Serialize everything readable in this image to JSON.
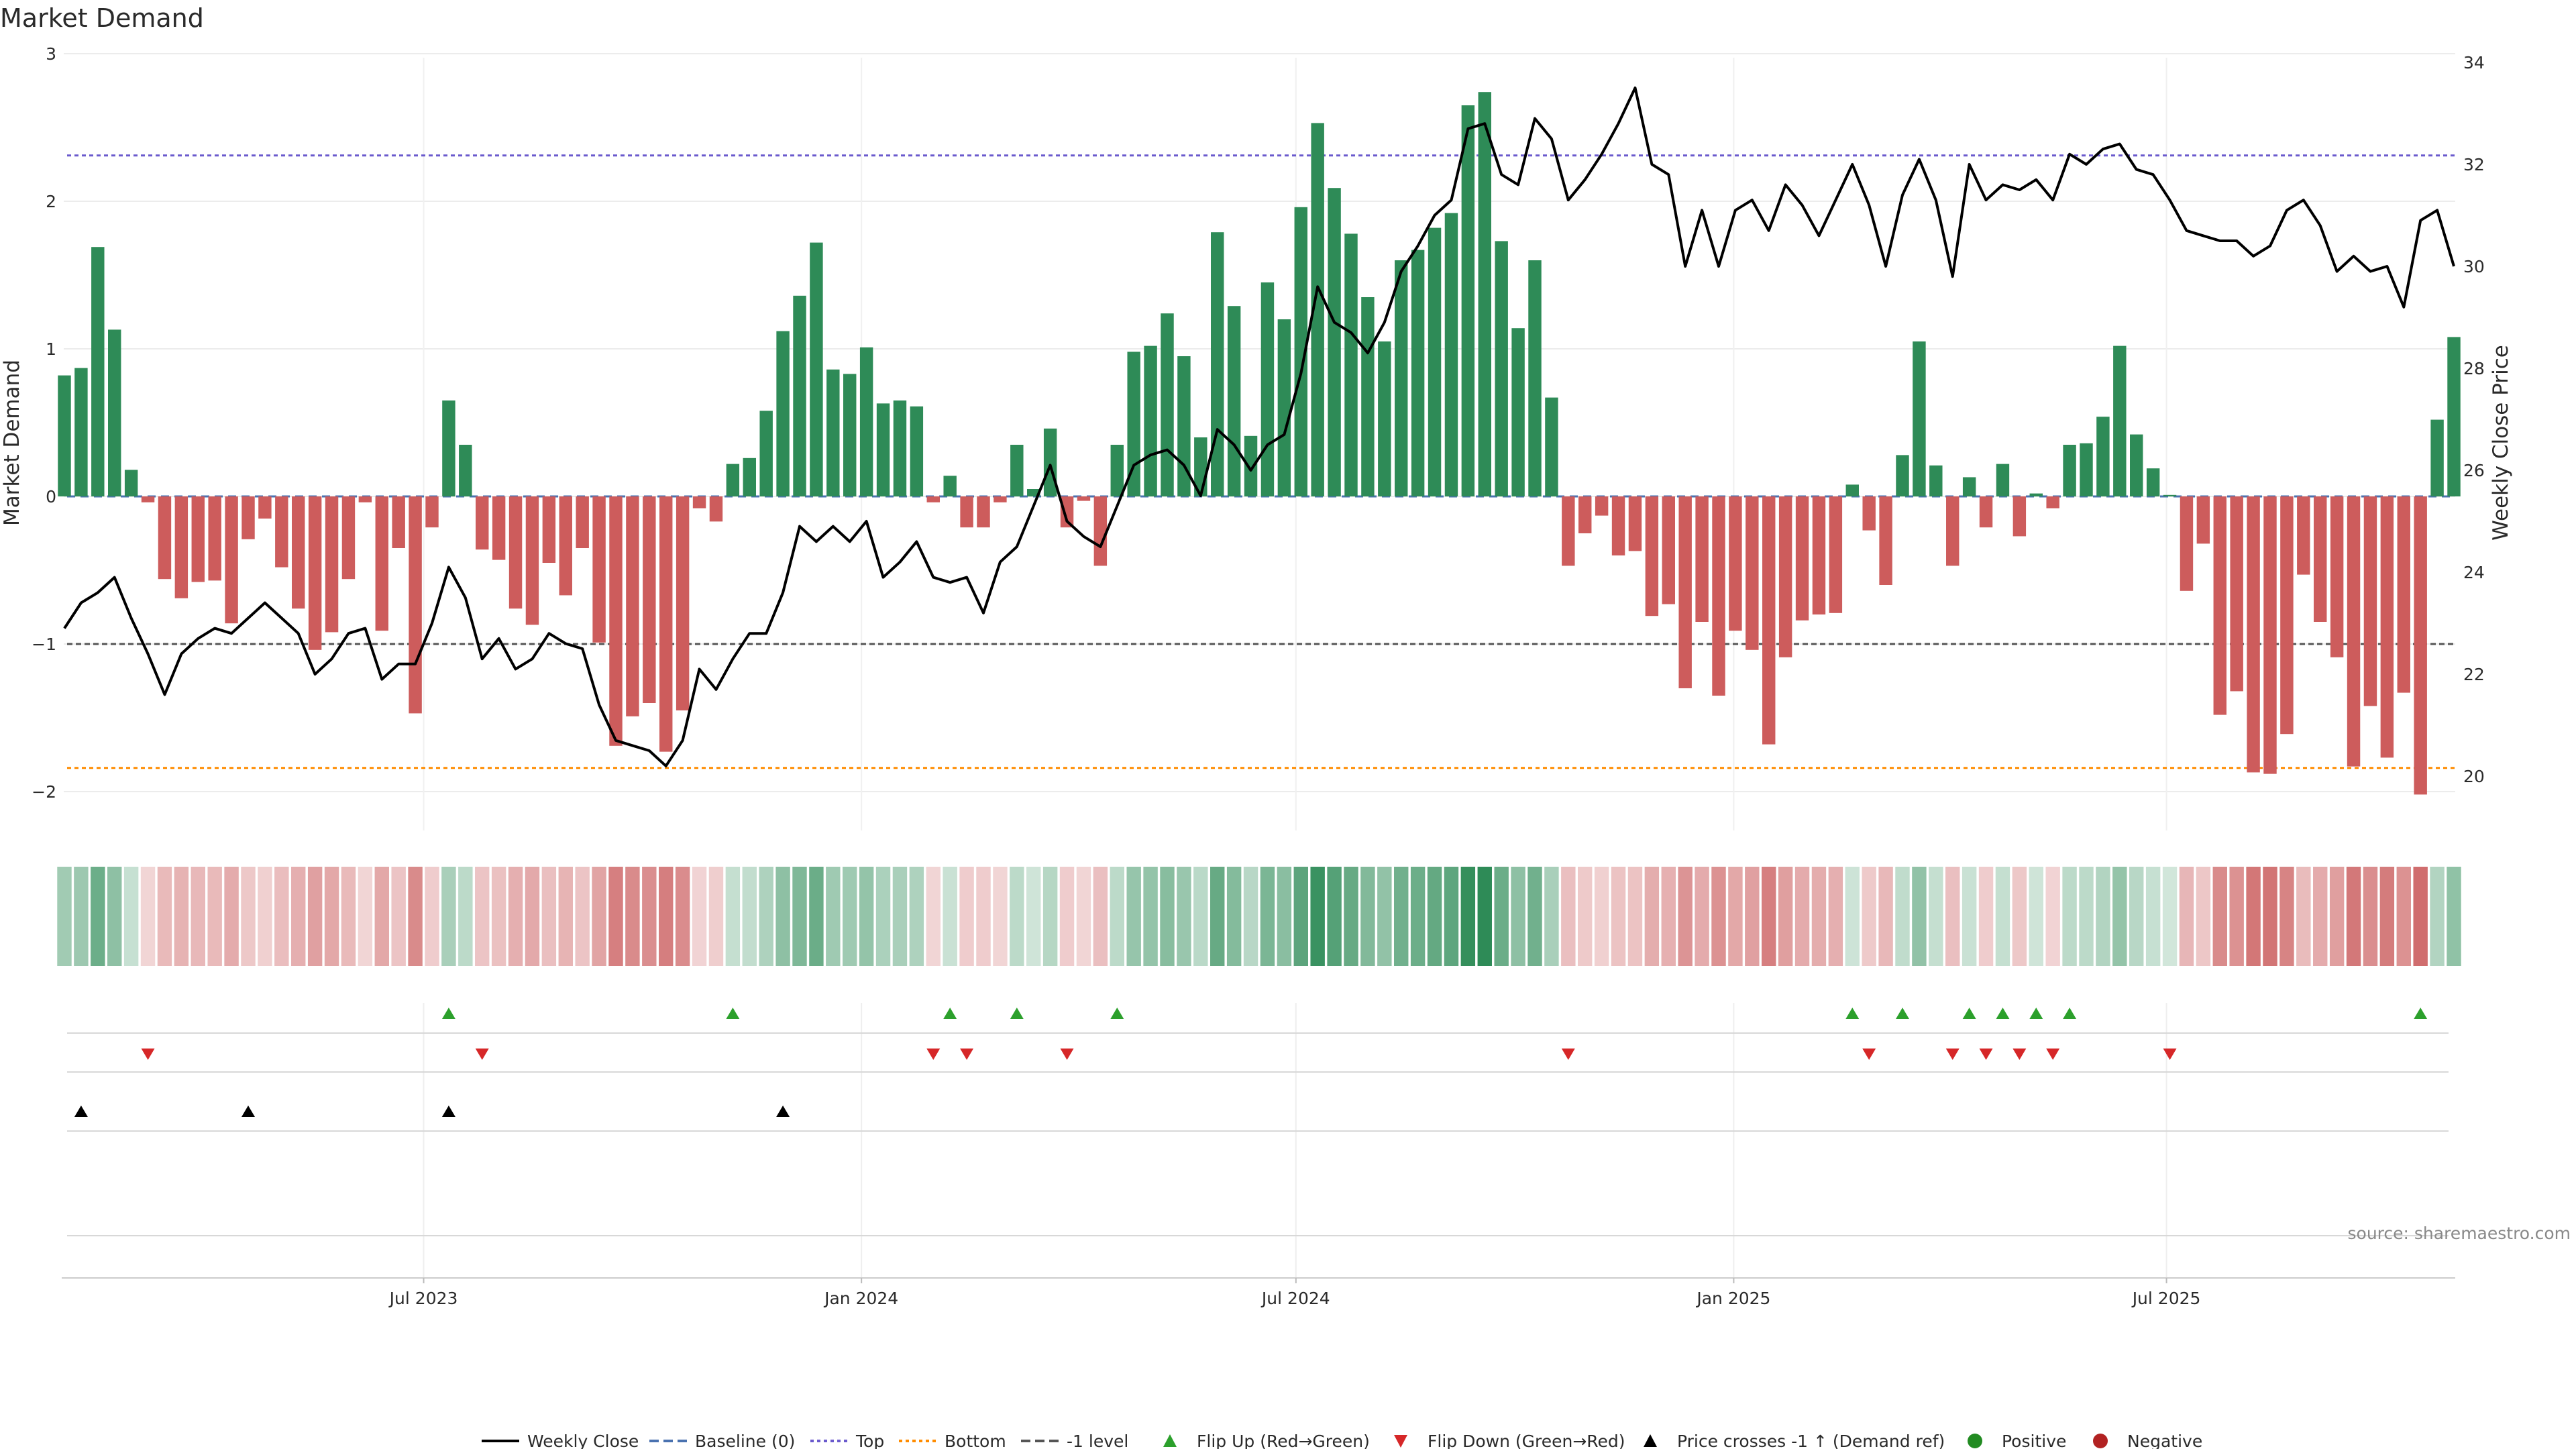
{
  "chart_data": {
    "type": "bar",
    "title": "Market Demand",
    "source": "source: sharemaestro.com",
    "ylabel_left": "Market Demand",
    "ylabel_right": "Weekly Close Price",
    "ylim_left": [
      -2.3,
      3
    ],
    "ylim_right": [
      19,
      34.2
    ],
    "yticks_left": [
      3,
      2,
      1,
      0,
      -1,
      -2
    ],
    "yticks_right": [
      34,
      32,
      30,
      28,
      26,
      24,
      22,
      20
    ],
    "reference_lines": {
      "top": 2.31,
      "bottom": -1.84,
      "minus_one": -1.0,
      "baseline": 0
    },
    "x_start_week": "2023-03-13",
    "x_ticks": [
      {
        "label": "Jul 2023",
        "week": 21.5
      },
      {
        "label": "Jan 2024",
        "week": 47.7
      },
      {
        "label": "Jul 2024",
        "week": 73.7
      },
      {
        "label": "Jan 2025",
        "week": 99.9
      },
      {
        "label": "Jul 2025",
        "week": 125.8
      }
    ],
    "demand_values": [
      0.82,
      0.87,
      1.69,
      1.13,
      0.18,
      -0.04,
      -0.56,
      -0.69,
      -0.58,
      -0.57,
      -0.86,
      -0.29,
      -0.15,
      -0.48,
      -0.76,
      -1.04,
      -0.92,
      -0.56,
      -0.04,
      -0.91,
      -0.35,
      -1.47,
      -0.21,
      0.65,
      0.35,
      -0.36,
      -0.43,
      -0.76,
      -0.87,
      -0.45,
      -0.67,
      -0.35,
      -0.99,
      -1.69,
      -1.49,
      -1.4,
      -1.73,
      -1.45,
      -0.08,
      -0.17,
      0.22,
      0.26,
      0.58,
      1.12,
      1.36,
      1.72,
      0.86,
      0.83,
      1.01,
      0.63,
      0.65,
      0.61,
      -0.04,
      0.14,
      -0.21,
      -0.21,
      -0.04,
      0.35,
      0.05,
      0.46,
      -0.21,
      -0.03,
      -0.47,
      0.35,
      0.98,
      1.02,
      1.24,
      0.95,
      0.4,
      1.79,
      1.29,
      0.41,
      1.45,
      1.2,
      1.96,
      2.53,
      2.09,
      1.78,
      1.35,
      1.05,
      1.6,
      1.67,
      1.82,
      1.92,
      2.65,
      2.74,
      1.73,
      1.14,
      1.6,
      0.67,
      -0.47,
      -0.25,
      -0.13,
      -0.4,
      -0.37,
      -0.81,
      -0.73,
      -1.3,
      -0.85,
      -1.35,
      -0.91,
      -1.04,
      -1.68,
      -1.09,
      -0.84,
      -0.8,
      -0.79,
      0.08,
      -0.23,
      -0.6,
      0.28,
      1.05,
      0.21,
      -0.47,
      0.13,
      -0.21,
      0.22,
      -0.27,
      0.02,
      -0.08,
      0.35,
      0.36,
      0.54,
      1.02,
      0.42,
      0.19,
      0.01,
      -0.64,
      -0.32,
      -1.48,
      -1.32,
      -1.87,
      -1.88,
      -1.61,
      -0.53,
      -0.85,
      -1.09,
      -1.83,
      -1.42,
      -1.77,
      -1.33,
      -2.02,
      0.52,
      1.08
    ],
    "price": {
      "weeks": [
        0,
        1,
        2,
        3,
        4,
        5,
        6,
        7,
        8,
        9,
        10,
        11,
        12,
        13,
        14,
        15,
        16,
        17,
        18,
        19,
        20,
        21,
        22,
        23,
        24,
        25,
        26,
        27,
        28,
        29,
        30,
        31,
        32,
        33,
        34,
        35,
        36,
        37,
        38,
        39,
        40,
        41,
        42,
        43,
        44,
        45,
        46,
        47,
        48,
        49,
        50,
        51,
        52,
        53,
        54,
        55,
        56,
        57,
        58,
        59,
        60,
        61,
        62,
        63,
        64,
        65,
        66,
        67,
        68,
        69,
        70,
        71,
        72,
        73,
        74,
        75,
        76,
        77,
        78,
        79,
        80,
        81,
        82,
        83,
        84,
        85,
        86,
        87,
        88,
        89,
        90,
        91,
        92,
        93,
        94,
        95,
        96,
        97,
        98,
        99,
        100,
        101,
        102,
        103,
        104,
        105,
        106,
        107,
        108,
        109,
        110,
        111,
        112,
        113,
        114,
        115,
        116,
        117,
        118,
        119,
        120,
        121,
        122,
        123,
        124,
        125,
        126,
        127,
        128,
        129,
        130,
        131,
        132,
        133,
        134,
        135,
        136,
        137,
        138,
        139,
        140,
        141,
        142,
        143
      ],
      "values": [
        22.9,
        23.4,
        23.6,
        23.9,
        23.1,
        22.4,
        21.6,
        22.4,
        22.7,
        22.9,
        22.8,
        23.1,
        23.4,
        23.1,
        22.8,
        22.0,
        22.3,
        22.8,
        22.9,
        21.9,
        22.2,
        22.2,
        23.0,
        24.1,
        23.5,
        22.3,
        22.7,
        22.1,
        22.3,
        22.8,
        22.6,
        22.5,
        21.4,
        20.7,
        20.6,
        20.5,
        20.2,
        20.7,
        22.1,
        21.7,
        22.3,
        22.8,
        22.8,
        23.6,
        24.9,
        24.6,
        24.9,
        24.6,
        25.0,
        23.9,
        24.2,
        24.6,
        23.9,
        23.8,
        23.9,
        23.2,
        24.2,
        24.5,
        25.3,
        26.1,
        25.0,
        24.7,
        24.5,
        25.3,
        26.1,
        26.3,
        26.4,
        26.1,
        25.5,
        26.8,
        26.5,
        26.0,
        26.5,
        26.7,
        27.9,
        29.6,
        28.9,
        28.7,
        28.3,
        28.9,
        29.9,
        30.4,
        31.0,
        31.3,
        32.7,
        32.8,
        31.8,
        31.6,
        32.9,
        32.5,
        31.3,
        31.7,
        32.2,
        32.8,
        33.5,
        32.0,
        31.8,
        30.0,
        31.1,
        30.0,
        31.1,
        31.3,
        30.7,
        31.6,
        31.2,
        30.6,
        31.3,
        32.0,
        31.2,
        30.0,
        31.4,
        32.1,
        31.3,
        29.8,
        32.0,
        31.3,
        31.6,
        31.5,
        31.7,
        31.3,
        32.2,
        32.0,
        32.3,
        32.4,
        31.9,
        31.8,
        31.3,
        30.7,
        30.6,
        30.5,
        30.5,
        30.2,
        30.4,
        31.1,
        31.3,
        30.8,
        29.9,
        30.2,
        29.9,
        30.0,
        29.2,
        30.9,
        31.1,
        30.0
      ]
    },
    "heat_strip": {
      "type": "heatmap",
      "source_series": "demand_values",
      "color_positive": "#2e8b57",
      "color_negative": "#c4494a"
    },
    "markers": {
      "flip_up_weeks": [
        23,
        40,
        53,
        57,
        63,
        107,
        110,
        114,
        116,
        118,
        120,
        141
      ],
      "flip_down_weeks": [
        5,
        25,
        52,
        54,
        60,
        90,
        108,
        113,
        115,
        117,
        119,
        126
      ],
      "price_cross_weeks": [
        1,
        11,
        23,
        43
      ]
    },
    "legend": [
      {
        "label": "Weekly Close",
        "kind": "line-solid",
        "color": "#000000"
      },
      {
        "label": "Baseline (0)",
        "kind": "line-dashed",
        "color": "#4a72b0"
      },
      {
        "label": "Top",
        "kind": "line-dotted",
        "color": "#6a5acd"
      },
      {
        "label": "Bottom",
        "kind": "line-dotted",
        "color": "#ff8c00"
      },
      {
        "label": "-1 level",
        "kind": "line-dashed",
        "color": "#555555"
      },
      {
        "label": "Flip Up (Red→Green)",
        "kind": "tri-up",
        "color": "#2ca02c"
      },
      {
        "label": "Flip Down (Green→Red)",
        "kind": "tri-down",
        "color": "#d62728"
      },
      {
        "label": "Price crosses -1 ↑ (Demand ref)",
        "kind": "tri-up",
        "color": "#000000"
      },
      {
        "label": "Positive",
        "kind": "dot",
        "color": "#228b22"
      },
      {
        "label": "Negative",
        "kind": "dot",
        "color": "#b22222"
      }
    ],
    "colors": {
      "positive_bar": "#2e8b57",
      "negative_bar": "#cd5c5c",
      "price_line": "#000000",
      "top_line": "#6a5acd",
      "bottom_line": "#ff8c00",
      "minus_one_line": "#555555",
      "baseline": "#4a72b0",
      "flip_up": "#2ca02c",
      "flip_down": "#d62728",
      "cross": "#000000"
    },
    "grid": true,
    "legend_position": "bottom"
  }
}
